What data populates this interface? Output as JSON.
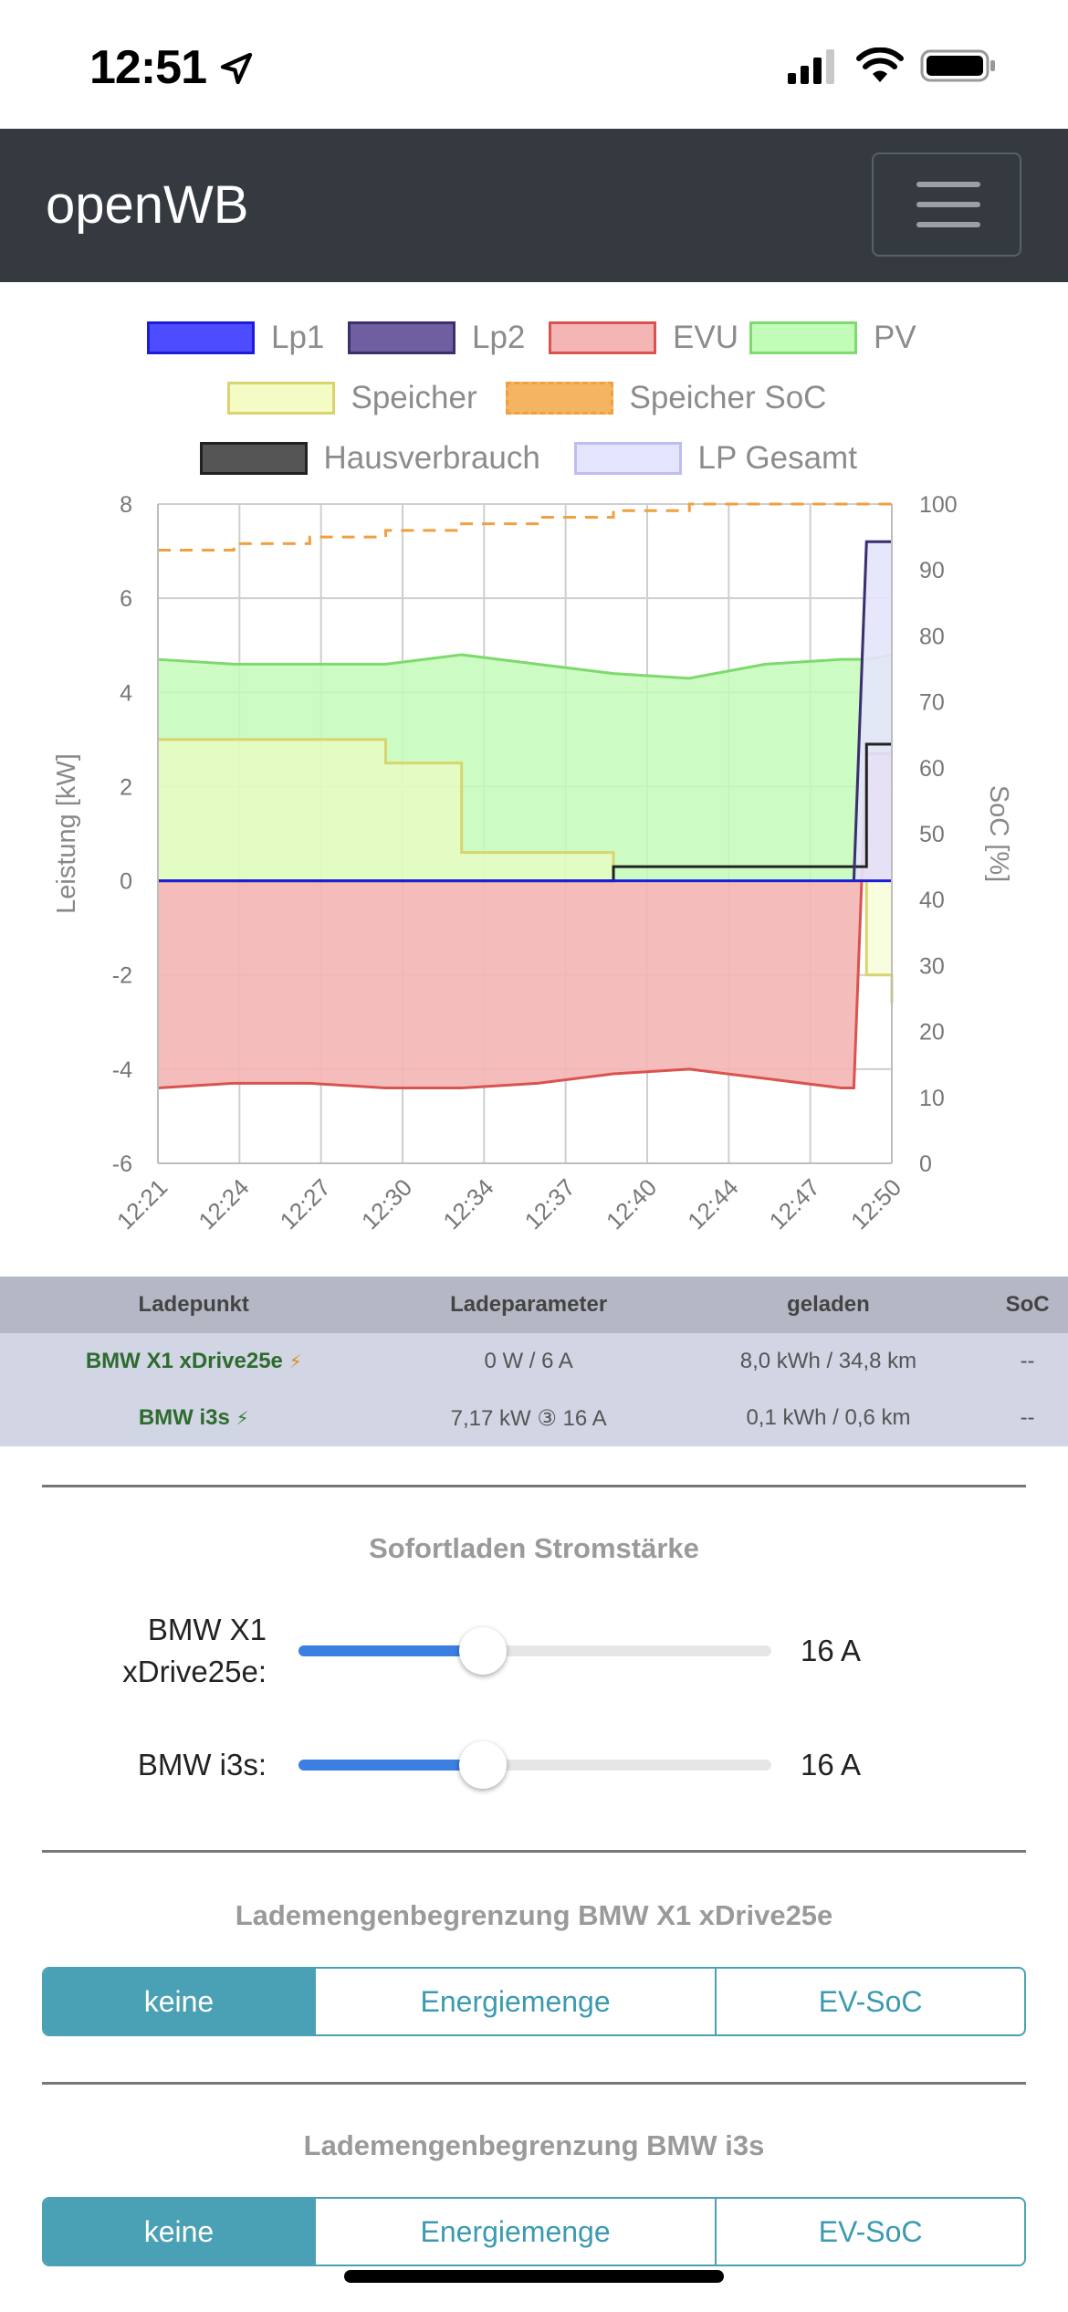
{
  "status": {
    "time": "12:51"
  },
  "app": {
    "title": "openWB"
  },
  "chart_data": {
    "type": "area",
    "legend": [
      {
        "label": "Lp1",
        "fill": "#4d4dff",
        "stroke": "#1c1cd9"
      },
      {
        "label": "Lp2",
        "fill": "#6f5fa0",
        "stroke": "#3c2f6e"
      },
      {
        "label": "EVU",
        "fill": "#f4b5b5",
        "stroke": "#d9534f"
      },
      {
        "label": "PV",
        "fill": "#c3fbb9",
        "stroke": "#7ed96e"
      },
      {
        "label": "Speicher",
        "fill": "#f4fbc4",
        "stroke": "#d9d46e"
      },
      {
        "label": "Speicher SoC",
        "fill": "#f5b461",
        "stroke": "#f0a040",
        "dashed": true
      },
      {
        "label": "Hausverbrauch",
        "fill": "#555555",
        "stroke": "#222222"
      },
      {
        "label": "LP Gesamt",
        "fill": "#e4e4fc",
        "stroke": "#bdbdf0"
      }
    ],
    "ylabel": "Leistung [kW]",
    "y2label": "SoC [%]",
    "ylim": [
      -6,
      8
    ],
    "y2lim": [
      0,
      100
    ],
    "yticks": [
      "8",
      "6",
      "4",
      "2",
      "0",
      "-2",
      "-4",
      "-6"
    ],
    "y2ticks": [
      "100",
      "90",
      "80",
      "70",
      "60",
      "50",
      "40",
      "30",
      "20",
      "10",
      "0"
    ],
    "xticks": [
      "12:21",
      "12:24",
      "12:27",
      "12:30",
      "12:34",
      "12:37",
      "12:40",
      "12:44",
      "12:47",
      "12:50"
    ],
    "x_minutes": [
      0,
      3,
      6,
      9,
      12,
      15,
      18,
      21,
      24,
      27,
      27.5,
      28,
      29
    ],
    "series": [
      {
        "name": "PV",
        "values": [
          4.7,
          4.6,
          4.6,
          4.6,
          4.8,
          4.6,
          4.4,
          4.3,
          4.6,
          4.7,
          4.7,
          4.7,
          4.8
        ]
      },
      {
        "name": "EVU",
        "values": [
          -4.4,
          -4.3,
          -4.3,
          -4.4,
          -4.4,
          -4.3,
          -4.1,
          -4.0,
          -4.2,
          -4.4,
          -4.4,
          2.7,
          2.7
        ]
      },
      {
        "name": "Speicher",
        "values": [
          3.0,
          3.0,
          3.0,
          2.5,
          0.6,
          0.6,
          0.0,
          0.0,
          0.0,
          0.0,
          0.0,
          -2.0,
          -2.6
        ]
      },
      {
        "name": "Hausverbrauch",
        "values": [
          0.0,
          0.0,
          0.0,
          0.0,
          0.0,
          0.0,
          0.3,
          0.3,
          0.3,
          0.3,
          0.3,
          2.9,
          2.9
        ]
      },
      {
        "name": "LP Gesamt",
        "values": [
          0,
          0,
          0,
          0,
          0,
          0,
          0,
          0,
          0,
          0,
          0,
          7.2,
          7.2
        ]
      },
      {
        "name": "Speicher SoC",
        "values": [
          93,
          94,
          95,
          96,
          97,
          98,
          99,
          100,
          100,
          100,
          100,
          100,
          100
        ]
      }
    ]
  },
  "table": {
    "headers": [
      "Ladepunkt",
      "Ladeparameter",
      "geladen",
      "SoC"
    ],
    "rows": [
      {
        "name": "BMW X1 xDrive25e",
        "plug": "⚡",
        "param": "0 W / 6 A",
        "charged": "8,0 kWh / 34,8 km",
        "soc": "--"
      },
      {
        "name": "BMW i3s",
        "plug": "⚡",
        "param": "7,17 kW ③ 16 A",
        "charged": "0,1 kWh / 0,6 km",
        "soc": "--"
      }
    ]
  },
  "sofortladen": {
    "title": "Sofortladen Stromstärke",
    "sliders": [
      {
        "label_line1": "BMW X1",
        "label_line2": "xDrive25e:",
        "value": "16 A",
        "fraction": 0.39
      },
      {
        "label": "BMW i3s:",
        "value": "16 A",
        "fraction": 0.39
      }
    ]
  },
  "limit1": {
    "title": "Lademengenbegrenzung BMW X1 xDrive25e",
    "options": [
      "keine",
      "Energiemenge",
      "EV-SoC"
    ],
    "selected": "keine"
  },
  "limit2": {
    "title": "Lademengenbegrenzung BMW i3s",
    "options": [
      "keine",
      "Energiemenge",
      "EV-SoC"
    ],
    "selected": "keine"
  }
}
